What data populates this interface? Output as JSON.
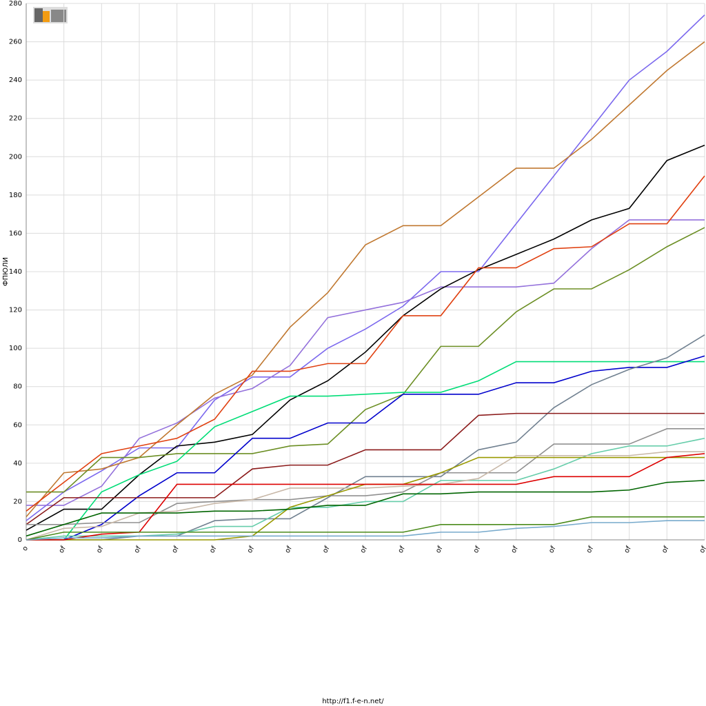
{
  "chart_data": {
    "type": "line",
    "y_label": "ФПЮЛИ",
    "source": "http://f1.f-e-n.net/",
    "categories": [
      "o",
      "of",
      "of",
      "of",
      "of",
      "of",
      "of",
      "of",
      "of",
      "of",
      "of",
      "of",
      "of",
      "of",
      "of",
      "of",
      "of",
      "of",
      "of"
    ],
    "ylim": [
      0,
      280
    ],
    "yticks": [
      0,
      20,
      40,
      60,
      80,
      100,
      120,
      140,
      160,
      180,
      200,
      220,
      240,
      260,
      280
    ],
    "grid": true,
    "series": [
      {
        "color": "#7b68ee",
        "values": [
          10,
          25,
          36,
          48,
          48,
          73,
          85,
          85,
          100,
          110,
          122,
          140,
          140,
          165,
          190,
          215,
          240,
          255,
          274
        ]
      },
      {
        "color": "#9370db",
        "values": [
          18,
          18,
          28,
          53,
          61,
          74,
          79,
          91,
          116,
          120,
          124,
          132,
          132,
          132,
          134,
          152,
          167,
          167,
          167
        ]
      },
      {
        "color": "#c07830",
        "values": [
          12,
          35,
          37,
          43,
          60,
          76,
          86,
          111,
          129,
          154,
          164,
          164,
          179,
          194,
          194,
          209,
          227,
          245,
          260
        ]
      },
      {
        "color": "#000000",
        "values": [
          5,
          16,
          16,
          34,
          49,
          51,
          55,
          73,
          83,
          98,
          117,
          131,
          141,
          149,
          157,
          167,
          173,
          198,
          206
        ]
      },
      {
        "color": "#e04010",
        "values": [
          15,
          30,
          45,
          49,
          53,
          63,
          88,
          88,
          92,
          92,
          117,
          117,
          142,
          142,
          152,
          153,
          165,
          165,
          190
        ]
      },
      {
        "color": "#6b8e23",
        "values": [
          25,
          25,
          43,
          43,
          45,
          45,
          45,
          49,
          50,
          68,
          76,
          101,
          101,
          119,
          131,
          131,
          141,
          153,
          163
        ]
      },
      {
        "color": "#00dd77",
        "values": [
          0,
          0,
          25,
          34,
          41,
          59,
          67,
          75,
          75,
          76,
          77,
          77,
          83,
          93,
          93,
          93,
          93,
          93,
          93
        ]
      },
      {
        "color": "#0000cc",
        "values": [
          0,
          0,
          8,
          23,
          35,
          35,
          53,
          53,
          61,
          61,
          76,
          76,
          76,
          82,
          82,
          88,
          90,
          90,
          96
        ]
      },
      {
        "color": "#708090",
        "values": [
          0,
          0,
          0,
          2,
          2,
          10,
          11,
          11,
          22,
          33,
          33,
          33,
          47,
          51,
          69,
          81,
          89,
          95,
          107
        ]
      },
      {
        "color": "#8b1a1a",
        "values": [
          8,
          22,
          22,
          22,
          22,
          22,
          37,
          39,
          39,
          47,
          47,
          47,
          65,
          66,
          66,
          66,
          66,
          66,
          66
        ]
      },
      {
        "color": "#909090",
        "values": [
          8,
          8,
          9,
          9,
          19,
          20,
          21,
          21,
          23,
          23,
          25,
          35,
          35,
          35,
          50,
          50,
          50,
          58,
          58
        ]
      },
      {
        "color": "#66cdaa",
        "values": [
          0,
          2,
          2,
          2,
          3,
          7,
          7,
          17,
          17,
          20,
          20,
          31,
          31,
          31,
          37,
          45,
          49,
          49,
          53
        ]
      },
      {
        "color": "#c8b8a8",
        "values": [
          0,
          6,
          7,
          14,
          15,
          19,
          21,
          27,
          27,
          27,
          28,
          29,
          32,
          44,
          44,
          44,
          44,
          46,
          46
        ]
      },
      {
        "color": "#999900",
        "values": [
          0,
          0,
          0,
          0,
          0,
          0,
          2,
          17,
          23,
          29,
          29,
          35,
          43,
          43,
          43,
          43,
          43,
          43,
          43
        ]
      },
      {
        "color": "#dd0000",
        "values": [
          0,
          0,
          3,
          4,
          29,
          29,
          29,
          29,
          29,
          29,
          29,
          29,
          29,
          29,
          33,
          33,
          33,
          43,
          45
        ]
      },
      {
        "color": "#006400",
        "values": [
          2,
          8,
          14,
          14,
          14,
          15,
          15,
          16,
          18,
          18,
          24,
          24,
          25,
          25,
          25,
          25,
          26,
          30,
          31
        ]
      },
      {
        "color": "#4a8a1a",
        "values": [
          0,
          4,
          4,
          4,
          4,
          4,
          4,
          4,
          4,
          4,
          4,
          8,
          8,
          8,
          8,
          12,
          12,
          12,
          12
        ]
      },
      {
        "color": "#77aacc",
        "values": [
          0,
          1,
          1,
          2,
          2,
          2,
          2,
          2,
          2,
          2,
          2,
          4,
          4,
          6,
          7,
          9,
          9,
          10,
          10
        ]
      }
    ]
  }
}
